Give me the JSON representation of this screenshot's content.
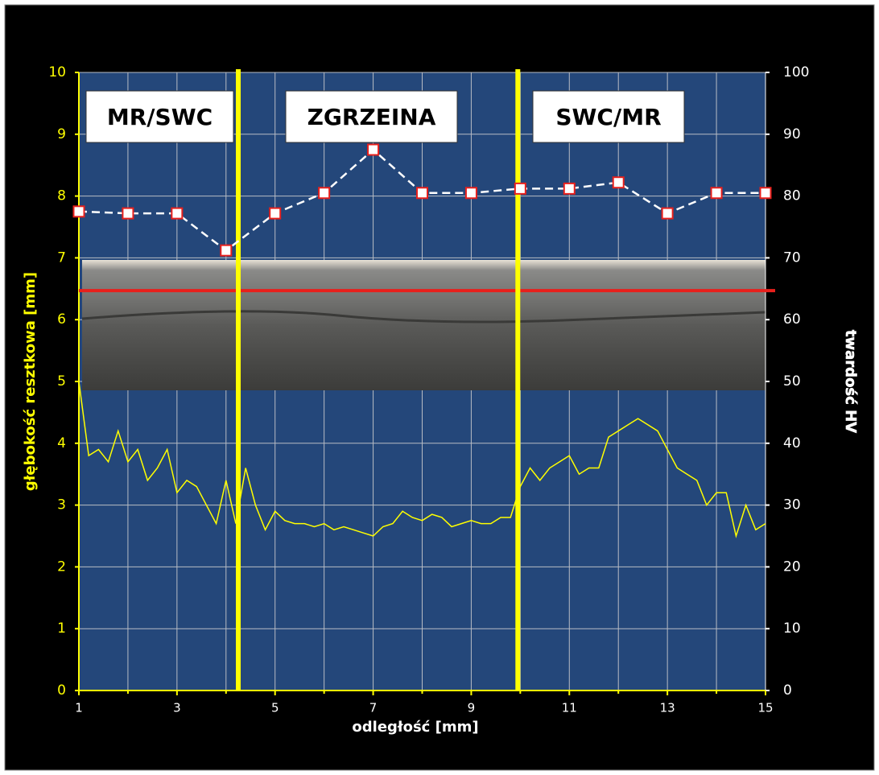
{
  "chart_data": {
    "type": "line",
    "x_label": "odległość [mm]",
    "y_label": "głębokość resztkowa [mm]",
    "y2_label": "twardość HV",
    "xlim": [
      1,
      15
    ],
    "xticks": [
      1,
      3,
      5,
      7,
      9,
      11,
      13,
      15
    ],
    "xminor": [
      2,
      4,
      6,
      8,
      10,
      12,
      14
    ],
    "ylim": [
      0,
      10
    ],
    "yticks": [
      0,
      1,
      2,
      3,
      4,
      5,
      6,
      7,
      8,
      9,
      10
    ],
    "y2lim": [
      0,
      100
    ],
    "y2ticks": [
      0,
      10,
      20,
      30,
      40,
      50,
      60,
      70,
      80,
      90,
      100
    ],
    "grid": true,
    "annotations": [
      "MR/SWC",
      "ZGRZEINA",
      "SWC/MR"
    ],
    "vlines": [
      {
        "x": 4.25,
        "color": "#ffff00"
      },
      {
        "x": 9.95,
        "color": "#ffff00"
      }
    ],
    "hline": {
      "y": 6.47,
      "color": "#e8201c"
    },
    "series": [
      {
        "color": "#ffff00",
        "x": [
          1.0,
          1.2,
          1.4,
          1.6,
          1.8,
          2.0,
          2.2,
          2.4,
          2.6,
          2.8,
          3.0,
          3.2,
          3.4,
          3.6,
          3.8,
          4.0,
          4.2,
          4.4,
          4.6,
          4.8,
          5.0,
          5.2,
          5.4,
          5.6,
          5.8,
          6.0,
          6.2,
          6.4,
          6.6,
          6.8,
          7.0,
          7.2,
          7.4,
          7.6,
          7.8,
          8.0,
          8.2,
          8.4,
          8.6,
          8.8,
          9.0,
          9.2,
          9.4,
          9.6,
          9.8,
          10.0,
          10.2,
          10.4,
          10.6,
          10.8,
          11.0,
          11.2,
          11.4,
          11.6,
          11.8,
          12.0,
          12.2,
          12.4,
          12.6,
          12.8,
          13.0,
          13.2,
          13.4,
          13.6,
          13.8,
          14.0,
          14.2,
          14.4,
          14.6,
          14.8,
          15.0
        ],
        "values": [
          5.0,
          3.8,
          3.9,
          3.7,
          4.2,
          3.7,
          3.9,
          3.4,
          3.6,
          3.9,
          3.2,
          3.4,
          3.3,
          3.0,
          2.7,
          3.4,
          2.7,
          3.6,
          3.0,
          2.6,
          2.9,
          2.75,
          2.7,
          2.7,
          2.65,
          2.7,
          2.6,
          2.65,
          2.6,
          2.55,
          2.5,
          2.65,
          2.7,
          2.9,
          2.8,
          2.75,
          2.85,
          2.8,
          2.65,
          2.7,
          2.75,
          2.7,
          2.7,
          2.8,
          2.8,
          3.3,
          3.6,
          3.4,
          3.6,
          3.7,
          3.8,
          3.5,
          3.6,
          3.6,
          4.1,
          4.2,
          4.3,
          4.4,
          4.3,
          4.2,
          3.9,
          3.6,
          3.5,
          3.4,
          3.0,
          3.2,
          3.2,
          2.5,
          3.0,
          2.6,
          2.7
        ]
      },
      {
        "color": "#ffffff",
        "marker_color": "#e8201c",
        "axis": "y2",
        "dashed": true,
        "x": [
          1,
          2,
          3,
          4,
          5,
          6,
          7,
          8,
          9,
          10,
          11,
          12,
          13,
          14,
          15
        ],
        "values": [
          77.5,
          77.2,
          77.2,
          71.2,
          77.2,
          80.5,
          87.5,
          80.5,
          80.5,
          81.2,
          81.2,
          82.2,
          77.2,
          80.5,
          80.5
        ]
      }
    ]
  }
}
